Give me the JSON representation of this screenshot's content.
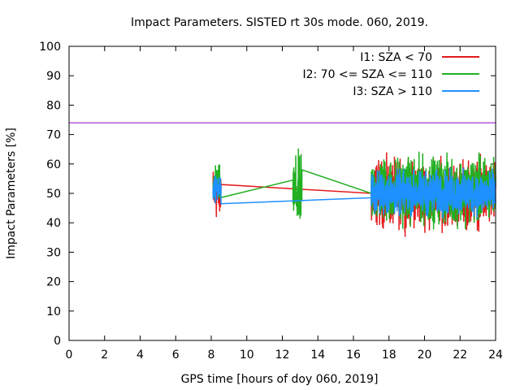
{
  "chart_data": {
    "type": "line",
    "title": "Impact Parameters. SISTED rt 30s mode. 060, 2019.",
    "xlabel": "GPS time [hours of doy 060, 2019]",
    "ylabel": "Impact Parameters [%]",
    "xlim": [
      0,
      24
    ],
    "ylim": [
      0,
      100
    ],
    "x_ticks": [
      "0",
      "2",
      "4",
      "6",
      "8",
      "10",
      "12",
      "14",
      "16",
      "18",
      "20",
      "22",
      "24"
    ],
    "y_ticks": [
      "0",
      "10",
      "20",
      "30",
      "40",
      "50",
      "60",
      "70",
      "80",
      "90",
      "100"
    ],
    "grid": false,
    "legend_position": "top-right",
    "reference_line": {
      "y": 74,
      "color": "#9400d3"
    },
    "series": [
      {
        "name": "I1: SZA < 70",
        "color": "#e41a1c",
        "segments": [
          {
            "type": "noise",
            "x": [
              8.1,
              8.55
            ],
            "center": 50,
            "amplitude": 10
          },
          {
            "type": "line",
            "points": [
              [
                8.55,
                53
              ],
              [
                17.0,
                50
              ]
            ]
          },
          {
            "type": "noise",
            "x": [
              17.0,
              24.0
            ],
            "center": 50,
            "amplitude": 12
          }
        ]
      },
      {
        "name": "I2: 70 <= SZA <= 110",
        "color": "#22b022",
        "segments": [
          {
            "type": "noise",
            "x": [
              8.1,
              8.5
            ],
            "center": 53,
            "amplitude": 7
          },
          {
            "type": "line",
            "points": [
              [
                8.5,
                48.5
              ],
              [
                12.6,
                54.5
              ]
            ]
          },
          {
            "type": "noise",
            "x": [
              12.6,
              13.1
            ],
            "center": 50,
            "amplitude": 14
          },
          {
            "type": "line",
            "points": [
              [
                13.1,
                58
              ],
              [
                17.0,
                50
              ]
            ]
          },
          {
            "type": "noise",
            "x": [
              17.0,
              24.0
            ],
            "center": 51,
            "amplitude": 12
          }
        ]
      },
      {
        "name": "I3: SZA > 110",
        "color": "#1e90ff",
        "segments": [
          {
            "type": "noise",
            "x": [
              8.1,
              8.55
            ],
            "center": 52,
            "amplitude": 5
          },
          {
            "type": "line",
            "points": [
              [
                8.55,
                46.5
              ],
              [
                17.0,
                48.5
              ]
            ]
          },
          {
            "type": "noise",
            "x": [
              17.0,
              24.0
            ],
            "center": 50,
            "amplitude": 8
          }
        ]
      }
    ]
  }
}
